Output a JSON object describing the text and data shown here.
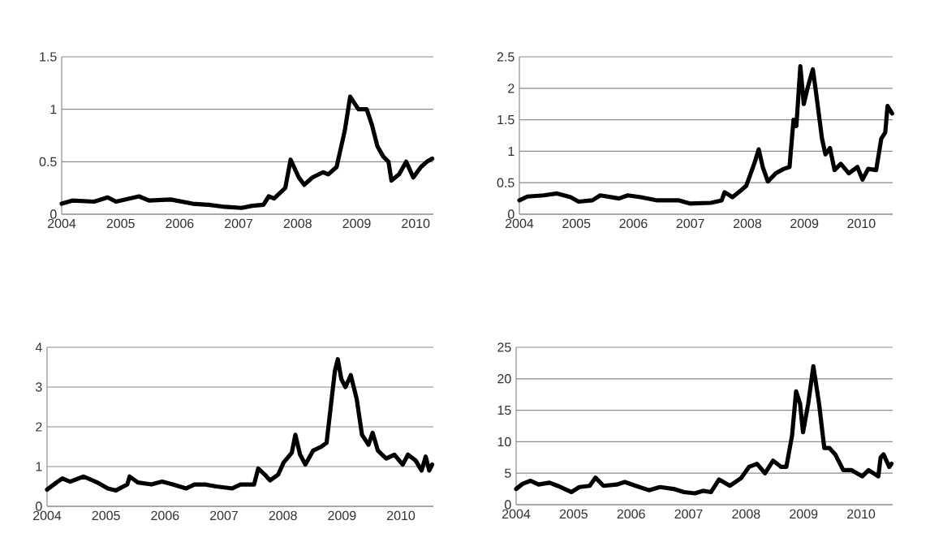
{
  "chart_data": [
    {
      "type": "line",
      "x": [
        2004.0,
        2004.18,
        2004.55,
        2004.78,
        2004.92,
        2005.31,
        2005.48,
        2005.85,
        2006.22,
        2006.49,
        2006.77,
        2007.05,
        2007.23,
        2007.42,
        2007.51,
        2007.6,
        2007.79,
        2007.88,
        2008.02,
        2008.11,
        2008.25,
        2008.43,
        2008.52,
        2008.66,
        2008.76,
        2008.8,
        2008.89,
        2009.03,
        2009.17,
        2009.26,
        2009.35,
        2009.45,
        2009.54,
        2009.59,
        2009.72,
        2009.84,
        2009.96,
        2010.09,
        2010.19,
        2010.28
      ],
      "series": [
        {
          "color": "#000000",
          "values": [
            0.1,
            0.13,
            0.12,
            0.16,
            0.12,
            0.17,
            0.13,
            0.14,
            0.1,
            0.09,
            0.07,
            0.06,
            0.08,
            0.09,
            0.17,
            0.15,
            0.25,
            0.52,
            0.35,
            0.28,
            0.35,
            0.4,
            0.38,
            0.45,
            0.7,
            0.8,
            1.12,
            1.0,
            1.0,
            0.85,
            0.65,
            0.55,
            0.5,
            0.32,
            0.38,
            0.5,
            0.35,
            0.45,
            0.5,
            0.53
          ]
        }
      ],
      "xlim": [
        2004,
        2010.3
      ],
      "ylim": [
        0,
        1.5
      ],
      "xticks": [
        2004,
        2005,
        2006,
        2007,
        2008,
        2009,
        2010
      ],
      "yticks": [
        0,
        0.5,
        1,
        1.5
      ],
      "grid": "y"
    },
    {
      "type": "line",
      "x": [
        2004.0,
        2004.14,
        2004.43,
        2004.66,
        2004.9,
        2005.04,
        2005.28,
        2005.42,
        2005.75,
        2005.9,
        2006.13,
        2006.42,
        2006.8,
        2006.99,
        2007.36,
        2007.55,
        2007.6,
        2007.74,
        2007.89,
        2007.98,
        2008.12,
        2008.2,
        2008.27,
        2008.36,
        2008.5,
        2008.64,
        2008.74,
        2008.81,
        2008.86,
        2008.93,
        2008.99,
        2009.07,
        2009.15,
        2009.21,
        2009.31,
        2009.37,
        2009.45,
        2009.53,
        2009.64,
        2009.78,
        2009.93,
        2010.02,
        2010.12,
        2010.26,
        2010.35,
        2010.42,
        2010.46,
        2010.54
      ],
      "series": [
        {
          "color": "#000000",
          "values": [
            0.22,
            0.28,
            0.3,
            0.33,
            0.27,
            0.2,
            0.22,
            0.3,
            0.25,
            0.3,
            0.27,
            0.22,
            0.22,
            0.17,
            0.18,
            0.22,
            0.35,
            0.27,
            0.38,
            0.45,
            0.8,
            1.03,
            0.75,
            0.52,
            0.65,
            0.72,
            0.75,
            1.5,
            1.4,
            2.35,
            1.75,
            2.05,
            2.3,
            1.9,
            1.2,
            0.95,
            1.05,
            0.7,
            0.8,
            0.65,
            0.75,
            0.55,
            0.72,
            0.7,
            1.2,
            1.3,
            1.72,
            1.6
          ]
        }
      ],
      "xlim": [
        2004,
        2010.55
      ],
      "ylim": [
        0,
        2.5
      ],
      "xticks": [
        2004,
        2005,
        2006,
        2007,
        2008,
        2009,
        2010
      ],
      "yticks": [
        0,
        0.5,
        1,
        1.5,
        2,
        2.5
      ],
      "grid": "y"
    },
    {
      "type": "line",
      "x": [
        2004.0,
        2004.16,
        2004.26,
        2004.39,
        2004.62,
        2004.85,
        2005.03,
        2005.17,
        2005.36,
        2005.4,
        2005.54,
        2005.77,
        2005.95,
        2006.13,
        2006.36,
        2006.5,
        2006.68,
        2006.87,
        2007.14,
        2007.28,
        2007.51,
        2007.58,
        2007.69,
        2007.78,
        2007.92,
        2008.01,
        2008.15,
        2008.21,
        2008.29,
        2008.38,
        2008.51,
        2008.65,
        2008.74,
        2008.81,
        2008.88,
        2008.93,
        2008.99,
        2009.06,
        2009.15,
        2009.25,
        2009.34,
        2009.45,
        2009.52,
        2009.61,
        2009.75,
        2009.89,
        2010.03,
        2010.12,
        2010.25,
        2010.35,
        2010.42,
        2010.48,
        2010.53
      ],
      "series": [
        {
          "color": "#000000",
          "values": [
            0.42,
            0.6,
            0.7,
            0.62,
            0.75,
            0.6,
            0.45,
            0.4,
            0.55,
            0.75,
            0.6,
            0.55,
            0.62,
            0.55,
            0.45,
            0.55,
            0.55,
            0.5,
            0.45,
            0.55,
            0.55,
            0.95,
            0.8,
            0.65,
            0.8,
            1.1,
            1.35,
            1.8,
            1.3,
            1.05,
            1.4,
            1.5,
            1.6,
            2.5,
            3.4,
            3.7,
            3.2,
            3.0,
            3.3,
            2.7,
            1.8,
            1.55,
            1.85,
            1.4,
            1.2,
            1.3,
            1.05,
            1.3,
            1.15,
            0.9,
            1.25,
            0.9,
            1.05
          ]
        }
      ],
      "xlim": [
        2004,
        2010.55
      ],
      "ylim": [
        0,
        4
      ],
      "xticks": [
        2004,
        2005,
        2006,
        2007,
        2008,
        2009,
        2010
      ],
      "yticks": [
        0,
        1,
        2,
        3,
        4
      ],
      "grid": "y"
    },
    {
      "type": "line",
      "x": [
        2004.0,
        2004.11,
        2004.25,
        2004.39,
        2004.58,
        2004.72,
        2004.96,
        2005.1,
        2005.28,
        2005.38,
        2005.52,
        2005.75,
        2005.89,
        2006.08,
        2006.31,
        2006.5,
        2006.74,
        2006.92,
        2007.11,
        2007.25,
        2007.39,
        2007.53,
        2007.72,
        2007.91,
        2008.05,
        2008.19,
        2008.33,
        2008.47,
        2008.61,
        2008.7,
        2008.8,
        2008.87,
        2008.94,
        2008.99,
        2009.08,
        2009.17,
        2009.27,
        2009.36,
        2009.45,
        2009.55,
        2009.69,
        2009.83,
        2010.02,
        2010.13,
        2010.3,
        2010.34,
        2010.39,
        2010.49,
        2010.53
      ],
      "series": [
        {
          "color": "#000000",
          "values": [
            2.5,
            3.3,
            3.8,
            3.2,
            3.5,
            3.0,
            2.0,
            2.8,
            3.0,
            4.3,
            3.0,
            3.2,
            3.6,
            3.0,
            2.3,
            2.8,
            2.5,
            2.0,
            1.8,
            2.2,
            2.0,
            4.0,
            3.0,
            4.2,
            6.0,
            6.5,
            5.0,
            7.0,
            6.0,
            6.0,
            11.0,
            18.0,
            16.0,
            11.5,
            16.0,
            22.0,
            16.0,
            9.0,
            9.0,
            8.0,
            5.5,
            5.5,
            4.5,
            5.5,
            4.5,
            7.5,
            8.0,
            6.0,
            6.5
          ]
        }
      ],
      "xlim": [
        2004,
        2010.55
      ],
      "ylim": [
        0,
        25
      ],
      "xticks": [
        2004,
        2005,
        2006,
        2007,
        2008,
        2009,
        2010
      ],
      "yticks": [
        0,
        5,
        10,
        15,
        20,
        25
      ],
      "grid": "y"
    }
  ]
}
